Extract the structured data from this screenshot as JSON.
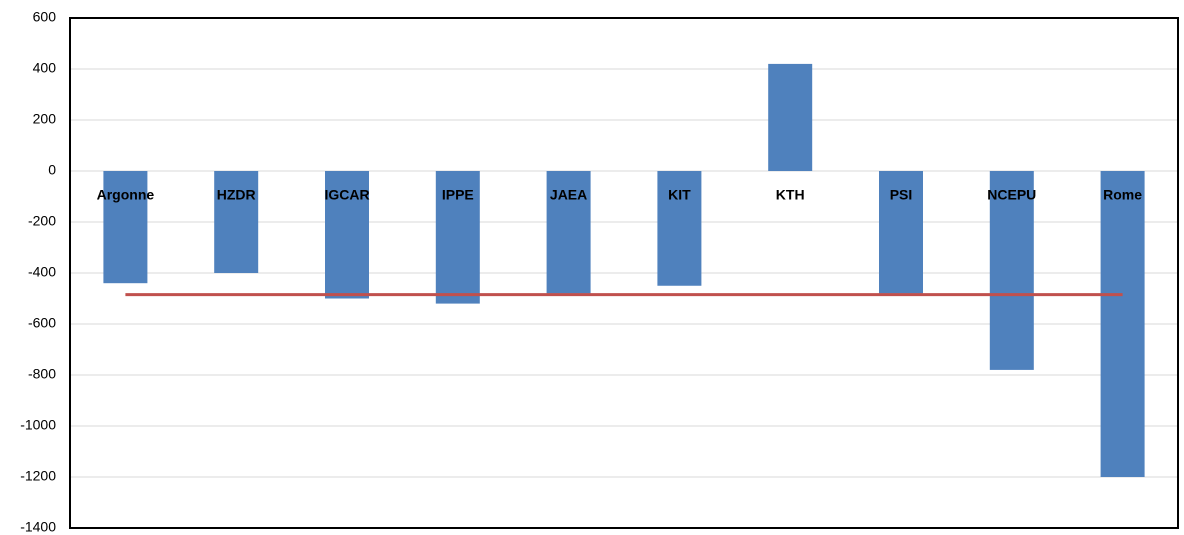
{
  "chart_data": {
    "type": "bar",
    "categories": [
      "Argonne",
      "HZDR",
      "IGCAR",
      "IPPE",
      "JAEA",
      "KIT",
      "KTH",
      "PSI",
      "NCEPU",
      "Rome"
    ],
    "series": [
      {
        "type": "bar",
        "color": "#4f81bd",
        "values": [
          -440,
          -400,
          -500,
          -520,
          -480,
          -450,
          420,
          -480,
          -780,
          -1200
        ]
      },
      {
        "type": "line",
        "color": "#c0504d",
        "values": [
          -485,
          -485,
          -485,
          -485,
          -485,
          -485,
          -485,
          -485,
          -485,
          -485
        ]
      }
    ],
    "ylim": [
      -1400,
      600
    ],
    "yticks": [
      -1400,
      -1200,
      -1000,
      -800,
      -600,
      -400,
      -200,
      0,
      200,
      400,
      600
    ],
    "grid": true
  }
}
